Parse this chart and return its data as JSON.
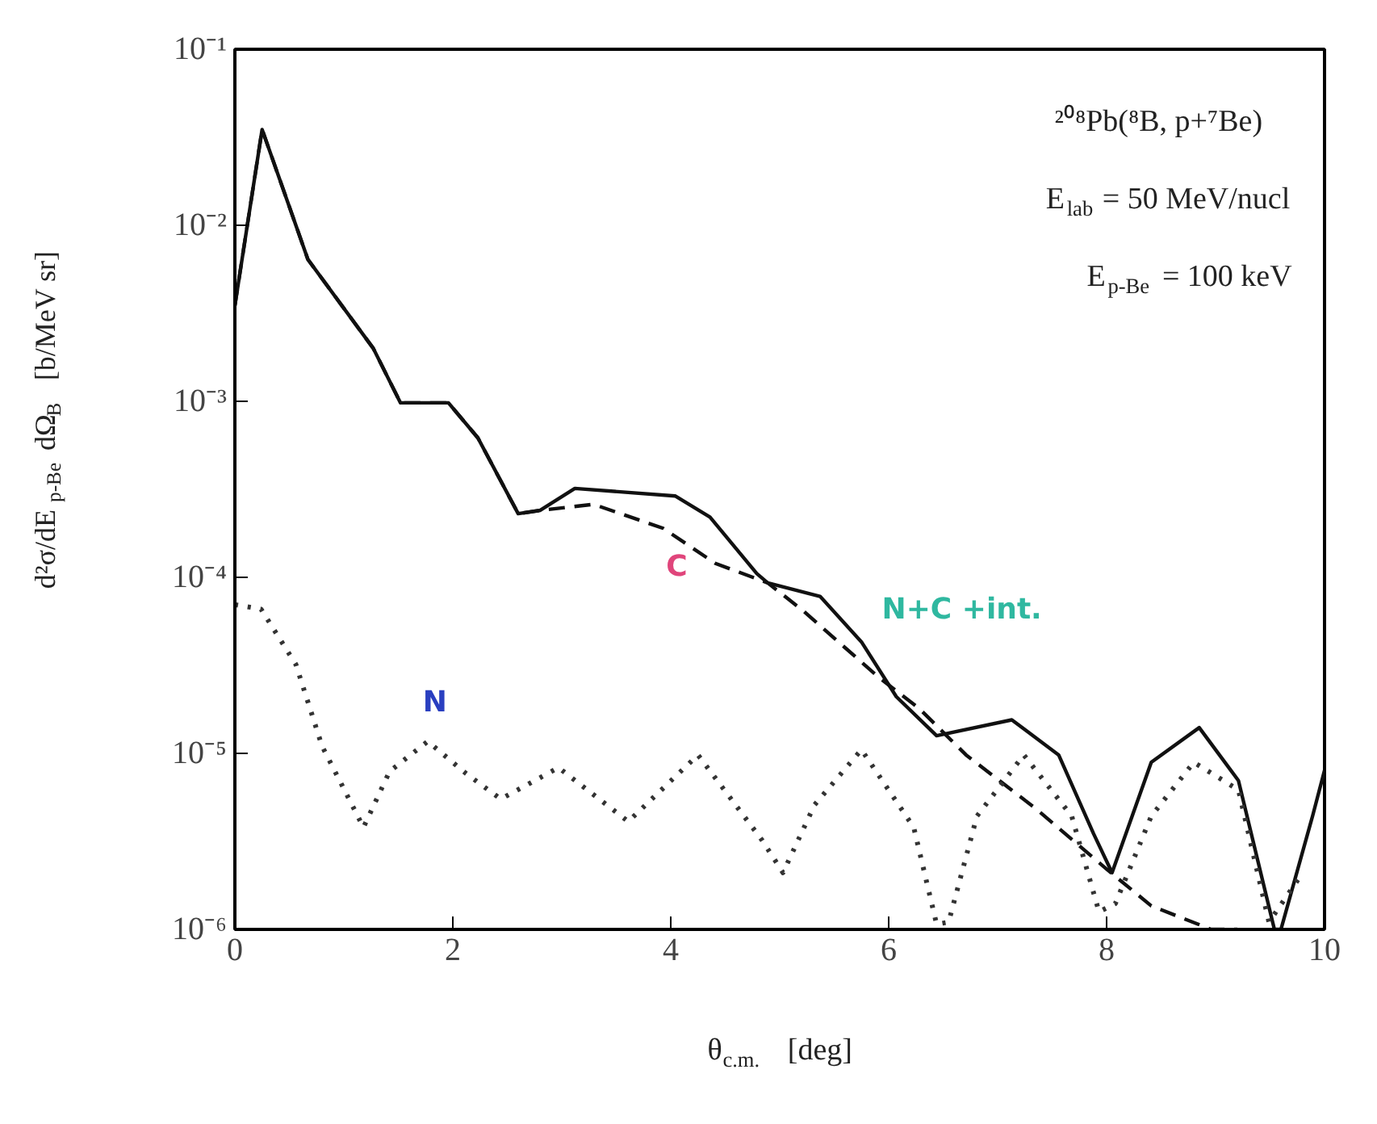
{
  "chart_data": {
    "type": "line",
    "xlabel": "θ$_{c.m.}$   [deg]",
    "ylabel": "d²σ/dE$_{p-Be}$ dΩ$_{B}$   [b/MeV sr]",
    "log": "y",
    "grid": false,
    "legend": false,
    "xlim": [
      0,
      10
    ],
    "xticks": [
      0,
      2,
      4,
      6,
      8,
      10
    ],
    "ylim": [
      1e-06,
      0.1
    ],
    "yticks": [
      {
        "value": 1e-06,
        "label": "10⁻⁶"
      },
      {
        "value": 1e-05,
        "label": "10⁻⁵"
      },
      {
        "value": 0.0001,
        "label": "10⁻⁴"
      },
      {
        "value": 0.001,
        "label": "10⁻³"
      },
      {
        "value": 0.01,
        "label": "10⁻²"
      },
      {
        "value": 0.1,
        "label": "10⁻¹"
      }
    ],
    "series": [
      {
        "name": "N+C +int.",
        "color": "#111111",
        "line_style": "solid",
        "x": [
          0,
          0.25,
          0.67,
          1.27,
          1.52,
          1.96,
          2.23,
          2.6,
          2.8,
          3.12,
          4.04,
          4.36,
          4.79,
          4.89,
          5.37,
          5.75,
          6.07,
          6.44,
          7.13,
          7.56,
          7.88,
          8.05,
          8.41,
          8.85,
          9.21,
          9.54,
          9.6,
          9.89,
          10
        ],
        "values": [
          0.0035,
          0.035,
          0.0064,
          0.002,
          0.00098,
          0.00098,
          0.00062,
          0.00023,
          0.00024,
          0.00032,
          0.00029,
          0.00022,
          0.000105,
          9.3e-05,
          7.8e-05,
          4.3e-05,
          2.1e-05,
          1.26e-05,
          1.55e-05,
          9.8e-06,
          3.5e-06,
          2.1e-06,
          8.9e-06,
          1.4e-05,
          7e-06,
          1e-06,
          1e-06,
          4.4e-06,
          8e-06
        ]
      },
      {
        "name": "C",
        "color": "#111111",
        "line_style": "dashed",
        "x": [
          0,
          0.25,
          0.67,
          1.27,
          1.52,
          1.96,
          2.23,
          2.6,
          2.8,
          3.29,
          3.93,
          4.41,
          4.89,
          5.21,
          5.91,
          6.28,
          6.71,
          7.36,
          8.0,
          8.41,
          8.96,
          9.2
        ],
        "values": [
          0.0035,
          0.035,
          0.0064,
          0.002,
          0.00098,
          0.00098,
          0.00062,
          0.00023,
          0.00024,
          0.00026,
          0.00019,
          0.00012,
          9.3e-05,
          6.5e-05,
          2.7e-05,
          1.8e-05,
          9.8e-06,
          4.8e-06,
          2.2e-06,
          1.36e-06,
          1e-06,
          1e-06
        ]
      },
      {
        "name": "N",
        "color": "#333333",
        "line_style": "dotted",
        "x": [
          0,
          0.24,
          0.56,
          0.8,
          1.18,
          1.42,
          1.77,
          2.12,
          2.44,
          2.97,
          3.61,
          4.25,
          4.84,
          5.03,
          5.32,
          5.75,
          6.23,
          6.44,
          6.55,
          6.81,
          7.24,
          7.68,
          7.93,
          8.08,
          8.41,
          8.8,
          9.21,
          9.49,
          9.8
        ],
        "values": [
          7e-05,
          6.6e-05,
          3.2e-05,
          1.1e-05,
          3.8e-06,
          7.9e-06,
          1.17e-05,
          7.7e-06,
          5.5e-06,
          8.3e-06,
          4.1e-06,
          9.8e-06,
          3.2e-06,
          2.1e-06,
          5.1e-06,
          1.05e-05,
          3.8e-06,
          1.07e-06,
          1.1e-06,
          4.4e-06,
          9.8e-06,
          4.4e-06,
          1.26e-06,
          1.4e-06,
          4.4e-06,
          8.9e-06,
          6.2e-06,
          1.1e-06,
          2.1e-06
        ]
      }
    ],
    "annotations": [
      "²⁰⁸Pb(⁸B, p+⁷Be)",
      "E$_{lab}$ = 50 MeV/nucl",
      "E$_{p-Be}$ = 100 keV"
    ]
  }
}
